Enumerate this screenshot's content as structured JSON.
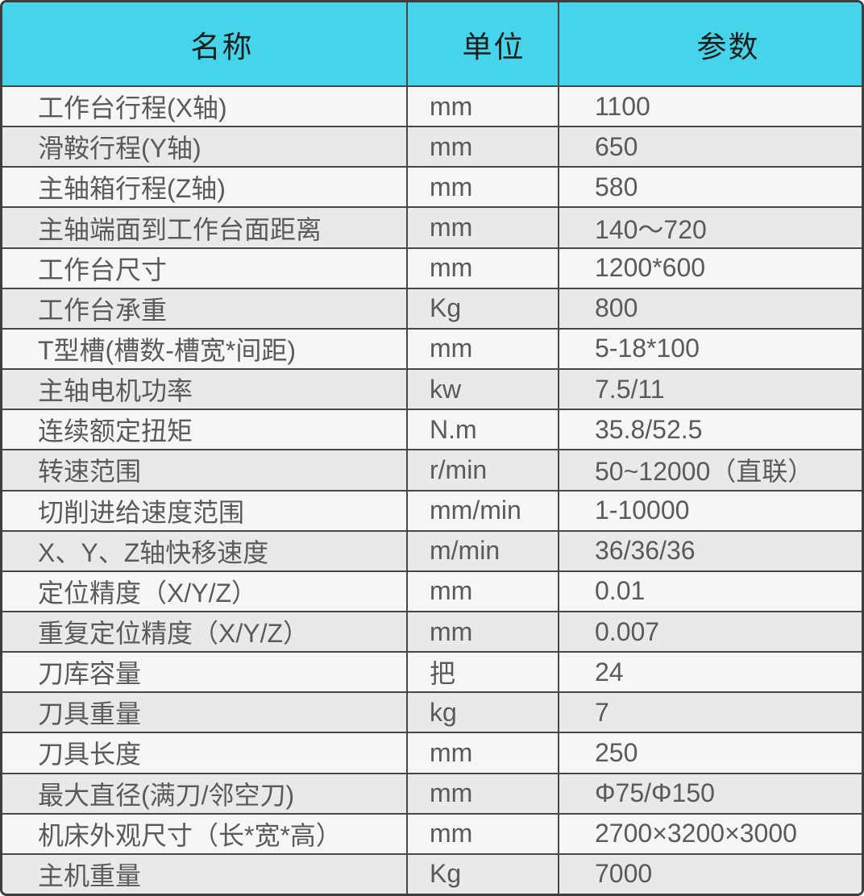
{
  "table": {
    "headers": {
      "name": "名称",
      "unit": "单位",
      "param": "参数"
    },
    "rows": [
      {
        "name": "工作台行程(X轴)",
        "unit": "mm",
        "param": "1100"
      },
      {
        "name": "滑鞍行程(Y轴)",
        "unit": "mm",
        "param": "650"
      },
      {
        "name": "主轴箱行程(Z轴)",
        "unit": "mm",
        "param": "580"
      },
      {
        "name": "主轴端面到工作台面距离",
        "unit": "mm",
        "param": "140～720"
      },
      {
        "name": "工作台尺寸",
        "unit": "mm",
        "param": "1200*600"
      },
      {
        "name": "工作台承重",
        "unit": "Kg",
        "param": "800"
      },
      {
        "name": "T型槽(槽数-槽宽*间距)",
        "unit": "mm",
        "param": "5-18*100"
      },
      {
        "name": "主轴电机功率",
        "unit": "kw",
        "param": "7.5/11"
      },
      {
        "name": "连续额定扭矩",
        "unit": "N.m",
        "param": "35.8/52.5"
      },
      {
        "name": "转速范围",
        "unit": "r/min",
        "param": "50~12000（直联）"
      },
      {
        "name": "切削进给速度范围",
        "unit": "mm/min",
        "param": "1-10000"
      },
      {
        "name": "X、Y、Z轴快移速度",
        "unit": "m/min",
        "param": "36/36/36"
      },
      {
        "name": "定位精度（X/Y/Z）",
        "unit": "mm",
        "param": "0.01"
      },
      {
        "name": "重复定位精度（X/Y/Z）",
        "unit": "mm",
        "param": "0.007"
      },
      {
        "name": "刀库容量",
        "unit": "把",
        "param": "24"
      },
      {
        "name": "刀具重量",
        "unit": "kg",
        "param": "7"
      },
      {
        "name": "刀具长度",
        "unit": "mm",
        "param": "250"
      },
      {
        "name": "最大直径(满刀/邻空刀)",
        "unit": "mm",
        "param": "Φ75/Φ150"
      },
      {
        "name": "机床外观尺寸（长*宽*高）",
        "unit": "mm",
        "param": "2700×3200×3000"
      },
      {
        "name": "主机重量",
        "unit": "Kg",
        "param": "7000"
      }
    ]
  },
  "colors": {
    "header_bg": "#45d4ea",
    "row_light": "#f6f6f6",
    "row_dark": "#e9e9e9",
    "border": "#474747",
    "header_text": "#1e1e1e",
    "body_text": "#5a5a5a"
  }
}
